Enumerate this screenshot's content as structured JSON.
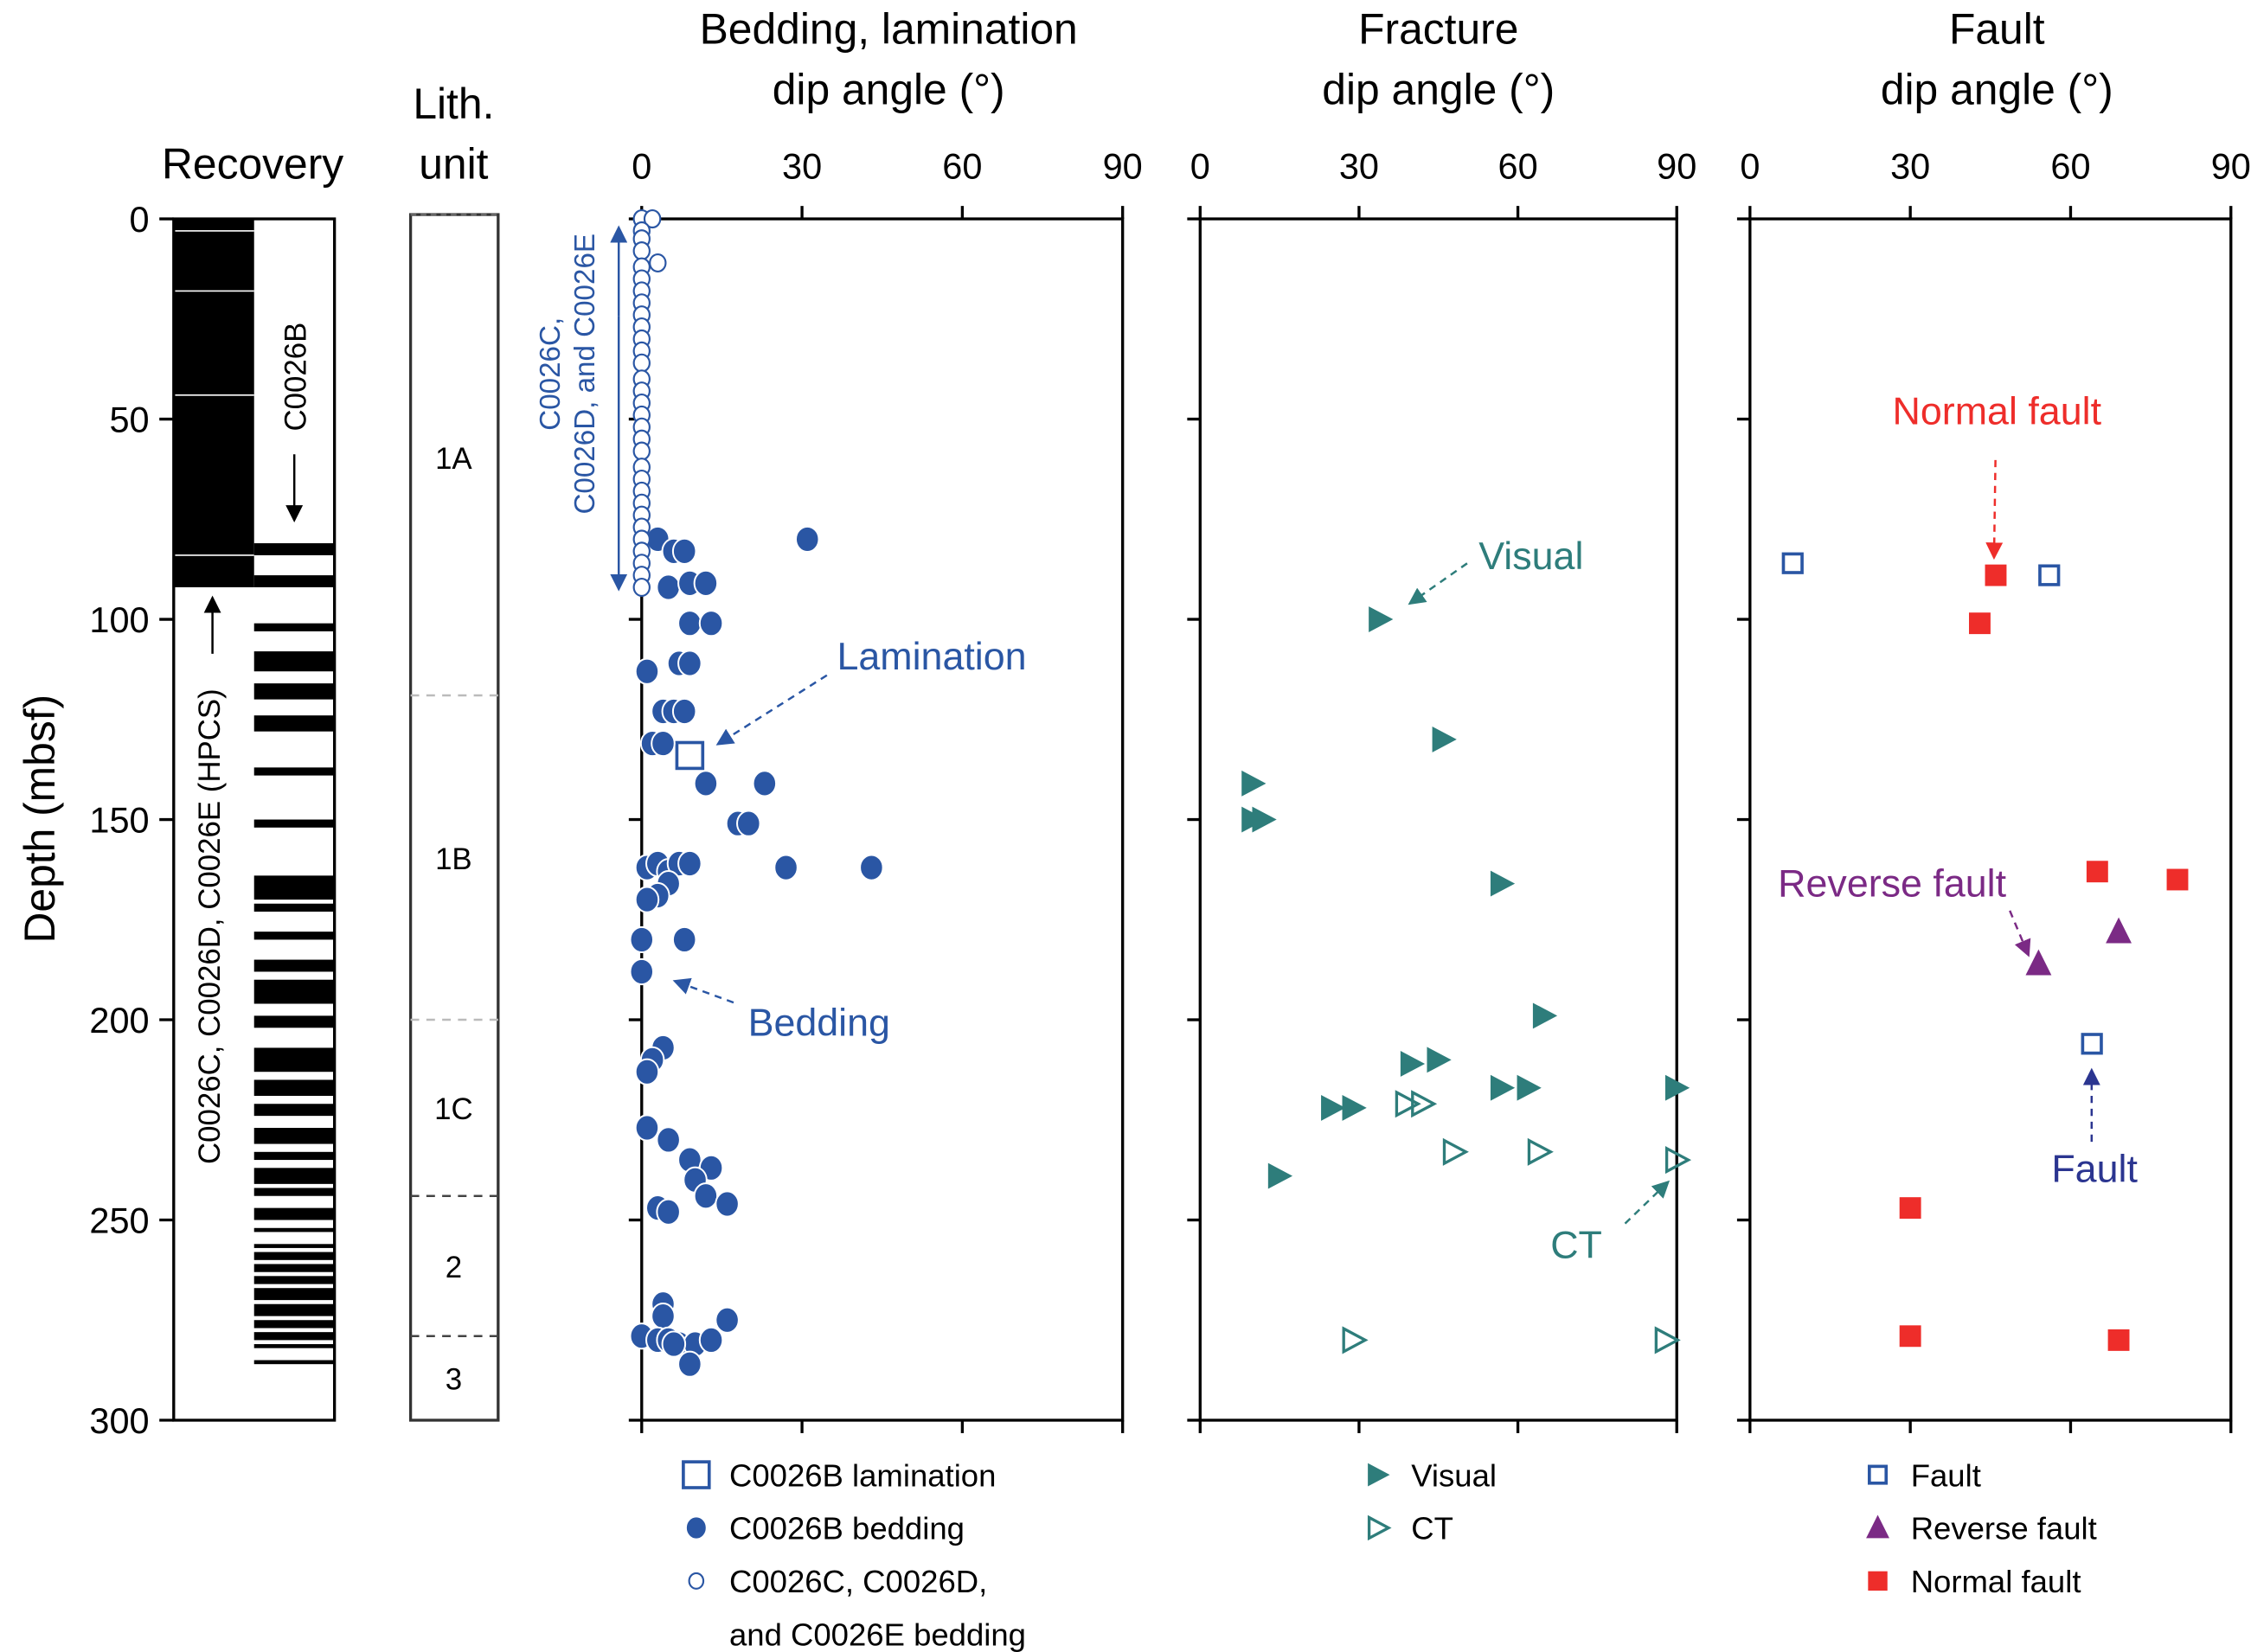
{
  "chart_data": {
    "type": "scatter",
    "ylabel": "Depth (mbsf)",
    "ylim": [
      0,
      300
    ],
    "yticks": [
      "0",
      "50",
      "100",
      "150",
      "200",
      "250",
      "300"
    ],
    "colors": {
      "blue": "#2a56a4",
      "teal": "#2e7d7b",
      "red": "#ee2d2a",
      "purple": "#7b2a85",
      "navy": "#2b3590"
    },
    "recovery": {
      "title": "Recovery",
      "hpcs_label": "C0026C, C0026D, C0026E (HPCS)",
      "c0026b_label": "C0026B",
      "hpcs_recovered_interval": [
        0,
        92
      ],
      "hpcs_breaks": [
        3,
        18,
        44,
        84
      ],
      "c0026b_recovered_intervals": [
        [
          81,
          84
        ],
        [
          89,
          92
        ],
        [
          101,
          103
        ],
        [
          108,
          113
        ],
        [
          116,
          120
        ],
        [
          124,
          128
        ],
        [
          137,
          139
        ],
        [
          150,
          152
        ],
        [
          164,
          170
        ],
        [
          171,
          173
        ],
        [
          178,
          180
        ],
        [
          185,
          188
        ],
        [
          190,
          196
        ],
        [
          199,
          202
        ],
        [
          207,
          213
        ],
        [
          215,
          219
        ],
        [
          221,
          224
        ],
        [
          227,
          231
        ],
        [
          233,
          235
        ],
        [
          237,
          241
        ],
        [
          242,
          244
        ],
        [
          247,
          250
        ],
        [
          252,
          253
        ],
        [
          256,
          257
        ],
        [
          258,
          260
        ],
        [
          261,
          263
        ],
        [
          264,
          266
        ],
        [
          267,
          270
        ],
        [
          271,
          274
        ],
        [
          275,
          277
        ],
        [
          278,
          280
        ],
        [
          281,
          282
        ],
        [
          285,
          286
        ]
      ]
    },
    "lithology": {
      "title": [
        "Lith.",
        "unit"
      ],
      "units": [
        {
          "name": "1A",
          "top": 0,
          "base": 119
        },
        {
          "name": "1B",
          "top": 119,
          "base": 200
        },
        {
          "name": "1C",
          "top": 200,
          "base": 244
        },
        {
          "name": "2",
          "top": 244,
          "base": 279
        },
        {
          "name": "3",
          "top": 279,
          "base": 300
        }
      ]
    },
    "panels": [
      {
        "id": "bedding",
        "title": [
          "Bedding, lamination",
          "dip angle (°)"
        ],
        "xlim": [
          0,
          90
        ],
        "xticks": [
          "0",
          "30",
          "60",
          "90"
        ],
        "series": [
          {
            "name": "C0026B lamination",
            "marker": "open-square",
            "color": "#2a56a4",
            "points": [
              [
                9,
                134
              ]
            ]
          },
          {
            "name": "C0026B bedding",
            "marker": "filled-circle",
            "color": "#2a56a4",
            "points": [
              [
                3,
                80
              ],
              [
                6,
                83
              ],
              [
                8,
                83
              ],
              [
                31,
                80
              ],
              [
                5,
                92
              ],
              [
                9,
                91
              ],
              [
                12,
                91
              ],
              [
                9,
                101
              ],
              [
                13,
                101
              ],
              [
                1,
                113
              ],
              [
                7,
                111
              ],
              [
                9,
                111
              ],
              [
                4,
                123
              ],
              [
                6,
                123
              ],
              [
                8,
                123
              ],
              [
                2,
                131
              ],
              [
                4,
                131
              ],
              [
                12,
                141
              ],
              [
                23,
                141
              ],
              [
                18,
                151
              ],
              [
                20,
                151
              ],
              [
                1,
                162
              ],
              [
                3,
                161
              ],
              [
                5,
                163
              ],
              [
                7,
                161
              ],
              [
                9,
                161
              ],
              [
                5,
                166
              ],
              [
                3,
                169
              ],
              [
                27,
                162
              ],
              [
                43,
                162
              ],
              [
                1,
                170
              ],
              [
                0,
                180
              ],
              [
                8,
                180
              ],
              [
                0,
                188
              ],
              [
                4,
                207
              ],
              [
                2,
                210
              ],
              [
                1,
                213
              ],
              [
                1,
                227
              ],
              [
                5,
                230
              ],
              [
                9,
                235
              ],
              [
                13,
                237
              ],
              [
                10,
                240
              ],
              [
                12,
                244
              ],
              [
                16,
                246
              ],
              [
                3,
                247
              ],
              [
                5,
                248
              ],
              [
                4,
                271
              ],
              [
                4,
                274
              ],
              [
                16,
                275
              ],
              [
                0,
                279
              ],
              [
                3,
                280
              ],
              [
                5,
                280
              ],
              [
                7,
                281
              ],
              [
                10,
                281
              ],
              [
                13,
                280
              ],
              [
                6,
                281
              ],
              [
                9,
                286
              ]
            ]
          },
          {
            "name": "C0026C, C0026D, and C0026E bedding",
            "marker": "open-circle",
            "color": "#2a56a4",
            "points": [
              [
                0,
                0
              ],
              [
                2,
                0
              ],
              [
                0,
                3
              ],
              [
                0,
                5
              ],
              [
                0,
                8
              ],
              [
                3,
                11
              ],
              [
                0,
                12
              ],
              [
                0,
                15
              ],
              [
                0,
                18
              ],
              [
                0,
                21
              ],
              [
                0,
                24
              ],
              [
                0,
                27
              ],
              [
                0,
                30
              ],
              [
                0,
                33
              ],
              [
                0,
                36
              ],
              [
                0,
                40
              ],
              [
                0,
                43
              ],
              [
                0,
                46
              ],
              [
                0,
                49
              ],
              [
                0,
                52
              ],
              [
                0,
                55
              ],
              [
                0,
                58
              ],
              [
                0,
                62
              ],
              [
                0,
                65
              ],
              [
                0,
                68
              ],
              [
                0,
                71
              ],
              [
                0,
                74
              ],
              [
                0,
                77
              ],
              [
                0,
                80
              ],
              [
                0,
                83
              ],
              [
                0,
                86
              ],
              [
                0,
                89
              ],
              [
                0,
                92
              ]
            ]
          }
        ],
        "annotations": [
          {
            "text": "C0026C,\nC0026D, and C0026E",
            "type": "range-arrow",
            "range": [
              0,
              92
            ]
          },
          {
            "text": "Lamination",
            "points_to": [
              9,
              134
            ]
          },
          {
            "text": "Bedding",
            "points_to": [
              0,
              188
            ]
          }
        ],
        "legend": [
          "C0026B lamination",
          "C0026B bedding",
          "C0026C, C0026D,",
          "and C0026E bedding"
        ]
      },
      {
        "id": "fracture",
        "title": [
          "Fracture",
          "dip angle (°)"
        ],
        "xlim": [
          0,
          90
        ],
        "xticks": [
          "0",
          "30",
          "60",
          "90"
        ],
        "series": [
          {
            "name": "Visual",
            "marker": "filled-triangle-right",
            "color": "#2e7d7b",
            "points": [
              [
                34,
                100
              ],
              [
                46,
                130
              ],
              [
                10,
                141
              ],
              [
                10,
                150
              ],
              [
                12,
                150
              ],
              [
                57,
                166
              ],
              [
                65,
                199
              ],
              [
                40,
                211
              ],
              [
                45,
                210
              ],
              [
                25,
                222
              ],
              [
                29,
                222
              ],
              [
                57,
                217
              ],
              [
                62,
                217
              ],
              [
                90,
                217
              ],
              [
                15,
                239
              ]
            ]
          },
          {
            "name": "CT",
            "marker": "open-triangle-right",
            "color": "#2e7d7b",
            "points": [
              [
                39,
                221
              ],
              [
                42,
                221
              ],
              [
                48,
                233
              ],
              [
                64,
                233
              ],
              [
                90,
                235
              ],
              [
                29,
                280
              ],
              [
                88,
                280
              ]
            ]
          }
        ],
        "annotations": [
          {
            "text": "Visual",
            "points_to": [
              34,
              100
            ]
          },
          {
            "text": "CT",
            "points_to": [
              90,
              235
            ]
          }
        ],
        "legend": [
          "Visual",
          "CT"
        ]
      },
      {
        "id": "fault",
        "title": [
          "Fault",
          "dip angle (°)"
        ],
        "xlim": [
          0,
          90
        ],
        "xticks": [
          "0",
          "30",
          "60",
          "90"
        ],
        "series": [
          {
            "name": "Fault",
            "marker": "open-square",
            "color": "#2a56a4",
            "points": [
              [
                8,
                86
              ],
              [
                56,
                89
              ],
              [
                64,
                206
              ]
            ]
          },
          {
            "name": "Reverse fault",
            "marker": "filled-triangle-up",
            "color": "#7b2a85",
            "points": [
              [
                69,
                178
              ],
              [
                54,
                186
              ]
            ]
          },
          {
            "name": "Normal fault",
            "marker": "filled-square",
            "color": "#ee2d2a",
            "points": [
              [
                46,
                89
              ],
              [
                43,
                101
              ],
              [
                65,
                163
              ],
              [
                80,
                165
              ],
              [
                30,
                247
              ],
              [
                30,
                279
              ],
              [
                69,
                280
              ]
            ]
          }
        ],
        "annotations": [
          {
            "text": "Normal fault",
            "points_to": [
              46,
              89
            ]
          },
          {
            "text": "Reverse fault",
            "points_to": [
              54,
              186
            ]
          },
          {
            "text": "Fault",
            "points_to": [
              64,
              206
            ]
          }
        ],
        "legend": [
          "Fault",
          "Reverse fault",
          "Normal fault"
        ]
      }
    ]
  }
}
